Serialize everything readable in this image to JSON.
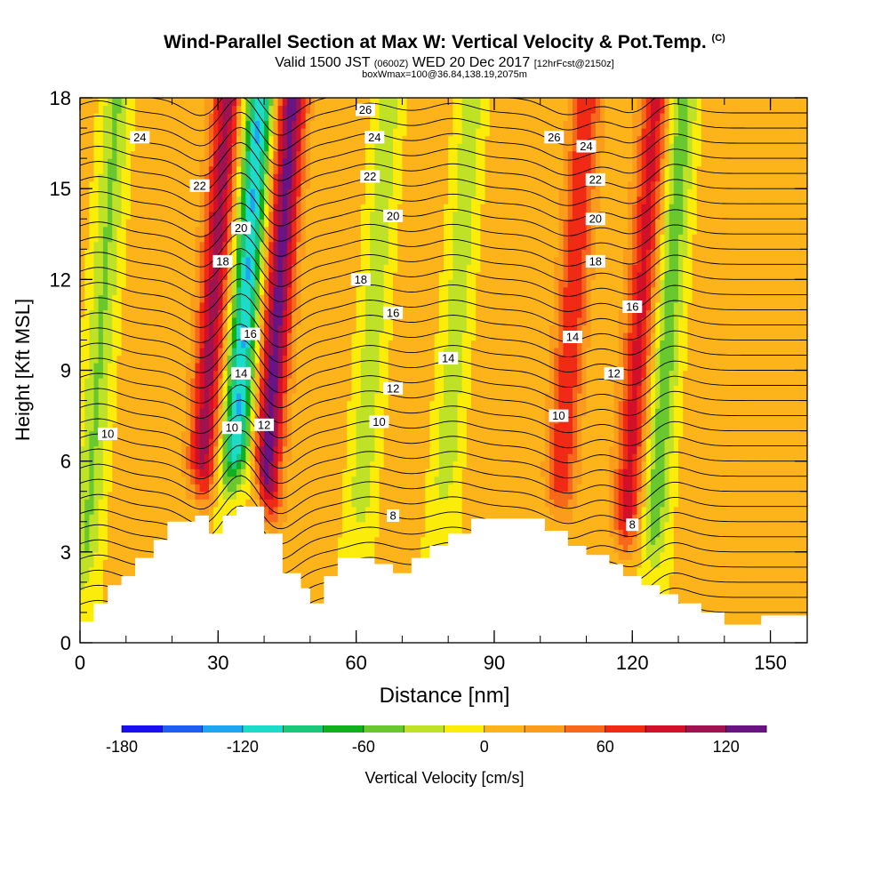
{
  "header": {
    "title": "Wind-Parallel Section at Max W: Vertical Velocity & Pot.Temp.",
    "title_mark": "(C)",
    "subtitle_a": "Valid 1500 JST",
    "subtitle_b": "(0600Z)",
    "subtitle_c": "WED 20 Dec 2017",
    "subtitle_d": "[12hrFcst@2150z]",
    "subtitle2": "boxWmax=100@36.84,138.19,2075m"
  },
  "chart_data": {
    "type": "heatmap",
    "xlabel": "Distance [nm]",
    "ylabel": "Height [Kft MSL]",
    "xlim": [
      0,
      158
    ],
    "ylim": [
      0,
      18
    ],
    "x_ticks": [
      0,
      30,
      60,
      90,
      120,
      150
    ],
    "y_ticks": [
      0,
      3,
      6,
      9,
      12,
      15,
      18
    ],
    "colorbar": {
      "label": "Vertical Velocity [cm/s]",
      "min": -180,
      "max": 140,
      "step": 20,
      "tick_values": [
        -180,
        -120,
        -60,
        0,
        60,
        120
      ],
      "tick_labels": [
        "-180",
        "-120",
        "-60",
        "0",
        "60",
        "120"
      ],
      "colors": [
        "#1a0ff0",
        "#1f5ef2",
        "#1ea6f2",
        "#1ddbc9",
        "#19c87a",
        "#10b01e",
        "#68c82e",
        "#c0e226",
        "#fbec0a",
        "#fcb41a",
        "#fc9c1c",
        "#f7681a",
        "#f02a14",
        "#d3102a",
        "#a01250",
        "#6a1484"
      ]
    },
    "updrafts": [
      {
        "x": 28,
        "peak": 100
      },
      {
        "x": 42,
        "peak": 120
      },
      {
        "x": 106,
        "peak": 70
      },
      {
        "x": 121,
        "peak": 80
      }
    ],
    "downdrafts": [
      {
        "x": 4,
        "peak": -50
      },
      {
        "x": 35,
        "peak": -130
      },
      {
        "x": 63,
        "peak": -40
      },
      {
        "x": 81,
        "peak": -40
      },
      {
        "x": 127,
        "peak": -60
      }
    ],
    "terrain": [
      {
        "x": 0,
        "z": 0.7
      },
      {
        "x": 3,
        "z": 1.3
      },
      {
        "x": 6,
        "z": 1.9
      },
      {
        "x": 9,
        "z": 2.2
      },
      {
        "x": 12,
        "z": 2.8
      },
      {
        "x": 16,
        "z": 3.4
      },
      {
        "x": 19,
        "z": 4.0
      },
      {
        "x": 25,
        "z": 4.2
      },
      {
        "x": 28,
        "z": 3.6
      },
      {
        "x": 31,
        "z": 4.2
      },
      {
        "x": 34,
        "z": 4.5
      },
      {
        "x": 38,
        "z": 4.5
      },
      {
        "x": 40,
        "z": 3.6
      },
      {
        "x": 44,
        "z": 2.3
      },
      {
        "x": 48,
        "z": 1.8
      },
      {
        "x": 50,
        "z": 1.3
      },
      {
        "x": 53,
        "z": 2.2
      },
      {
        "x": 56,
        "z": 2.8
      },
      {
        "x": 61,
        "z": 2.8
      },
      {
        "x": 64,
        "z": 2.6
      },
      {
        "x": 68,
        "z": 2.3
      },
      {
        "x": 72,
        "z": 2.8
      },
      {
        "x": 76,
        "z": 3.2
      },
      {
        "x": 80,
        "z": 3.6
      },
      {
        "x": 85,
        "z": 4.1
      },
      {
        "x": 96,
        "z": 4.1
      },
      {
        "x": 101,
        "z": 3.7
      },
      {
        "x": 106,
        "z": 3.2
      },
      {
        "x": 110,
        "z": 2.9
      },
      {
        "x": 115,
        "z": 2.6
      },
      {
        "x": 118,
        "z": 2.2
      },
      {
        "x": 122,
        "z": 1.9
      },
      {
        "x": 126,
        "z": 1.6
      },
      {
        "x": 130,
        "z": 1.3
      },
      {
        "x": 135,
        "z": 1.0
      },
      {
        "x": 140,
        "z": 0.6
      },
      {
        "x": 148,
        "z": 0.9
      },
      {
        "x": 158,
        "z": 1.0
      }
    ],
    "isentrope_labels": [
      {
        "text": "26",
        "x": 62,
        "y": 17.6
      },
      {
        "text": "26",
        "x": 103,
        "y": 16.7
      },
      {
        "text": "24",
        "x": 13,
        "y": 16.7
      },
      {
        "text": "24",
        "x": 64,
        "y": 16.7
      },
      {
        "text": "24",
        "x": 110,
        "y": 16.4
      },
      {
        "text": "22",
        "x": 26,
        "y": 15.1
      },
      {
        "text": "22",
        "x": 63,
        "y": 15.4
      },
      {
        "text": "22",
        "x": 112,
        "y": 15.3
      },
      {
        "text": "20",
        "x": 35,
        "y": 13.7
      },
      {
        "text": "20",
        "x": 68,
        "y": 14.1
      },
      {
        "text": "20",
        "x": 112,
        "y": 14.0
      },
      {
        "text": "18",
        "x": 31,
        "y": 12.6
      },
      {
        "text": "18",
        "x": 61,
        "y": 12.0
      },
      {
        "text": "18",
        "x": 112,
        "y": 12.6
      },
      {
        "text": "16",
        "x": 37,
        "y": 10.2
      },
      {
        "text": "16",
        "x": 68,
        "y": 10.9
      },
      {
        "text": "16",
        "x": 120,
        "y": 11.1
      },
      {
        "text": "14",
        "x": 35,
        "y": 8.9
      },
      {
        "text": "14",
        "x": 80,
        "y": 9.4
      },
      {
        "text": "14",
        "x": 107,
        "y": 10.1
      },
      {
        "text": "12",
        "x": 40,
        "y": 7.2
      },
      {
        "text": "12",
        "x": 68,
        "y": 8.4
      },
      {
        "text": "12",
        "x": 116,
        "y": 8.9
      },
      {
        "text": "10",
        "x": 6,
        "y": 6.9
      },
      {
        "text": "10",
        "x": 33,
        "y": 7.1
      },
      {
        "text": "10",
        "x": 65,
        "y": 7.3
      },
      {
        "text": "10",
        "x": 104,
        "y": 7.5
      },
      {
        "text": "8",
        "x": 68,
        "y": 4.2
      },
      {
        "text": "8",
        "x": 120,
        "y": 3.9
      }
    ]
  }
}
